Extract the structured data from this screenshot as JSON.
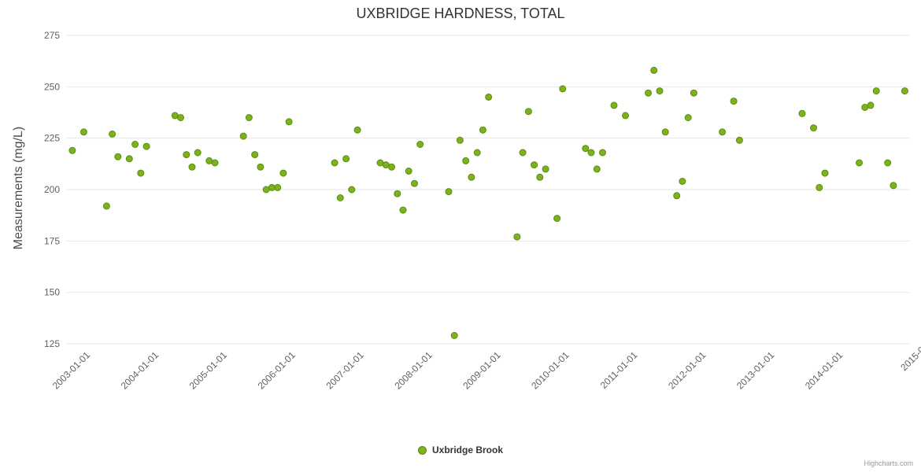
{
  "credits": "Highcharts.com",
  "chart_data": {
    "type": "scatter",
    "title": "UXBRIDGE HARDNESS, TOTAL",
    "xlabel": "",
    "ylabel": "Measurements (mg/L)",
    "ylim": [
      125,
      275
    ],
    "y_ticks": [
      125,
      150,
      175,
      200,
      225,
      250,
      275
    ],
    "x_ticks": [
      "2003-01-01",
      "2004-01-01",
      "2005-01-01",
      "2006-01-01",
      "2007-01-01",
      "2008-01-01",
      "2009-01-01",
      "2010-01-01",
      "2011-01-01",
      "2012-01-01",
      "2013-01-01",
      "2014-01-01",
      "2015-01-01"
    ],
    "grid": "horizontal",
    "legend_position": "bottom-center",
    "colors": {
      "grid": "#e6e6e6",
      "axis_label": "#606060",
      "title": "#333333"
    },
    "series": [
      {
        "name": "Uxbridge Brook",
        "color": "#7bb21e",
        "stroke": "#5d8c10",
        "points": [
          {
            "d": "2002-10",
            "v": 219
          },
          {
            "d": "2002-12",
            "v": 228
          },
          {
            "d": "2003-04",
            "v": 192
          },
          {
            "d": "2003-05",
            "v": 227
          },
          {
            "d": "2003-06",
            "v": 216
          },
          {
            "d": "2003-08",
            "v": 215
          },
          {
            "d": "2003-09",
            "v": 222
          },
          {
            "d": "2003-10",
            "v": 208
          },
          {
            "d": "2003-11",
            "v": 221
          },
          {
            "d": "2004-04",
            "v": 236
          },
          {
            "d": "2004-05",
            "v": 235
          },
          {
            "d": "2004-06",
            "v": 217
          },
          {
            "d": "2004-07",
            "v": 211
          },
          {
            "d": "2004-08",
            "v": 218
          },
          {
            "d": "2004-10",
            "v": 214
          },
          {
            "d": "2004-11",
            "v": 213
          },
          {
            "d": "2005-04",
            "v": 226
          },
          {
            "d": "2005-05",
            "v": 235
          },
          {
            "d": "2005-06",
            "v": 217
          },
          {
            "d": "2005-07",
            "v": 211
          },
          {
            "d": "2005-08",
            "v": 200
          },
          {
            "d": "2005-09",
            "v": 201
          },
          {
            "d": "2005-10",
            "v": 201
          },
          {
            "d": "2005-11",
            "v": 208
          },
          {
            "d": "2005-12",
            "v": 233
          },
          {
            "d": "2006-08",
            "v": 213
          },
          {
            "d": "2006-09",
            "v": 196
          },
          {
            "d": "2006-10",
            "v": 215
          },
          {
            "d": "2006-11",
            "v": 200
          },
          {
            "d": "2006-12",
            "v": 229
          },
          {
            "d": "2007-04",
            "v": 213
          },
          {
            "d": "2007-05",
            "v": 212
          },
          {
            "d": "2007-06",
            "v": 211
          },
          {
            "d": "2007-07",
            "v": 198
          },
          {
            "d": "2007-08",
            "v": 190
          },
          {
            "d": "2007-09",
            "v": 209
          },
          {
            "d": "2007-10",
            "v": 203
          },
          {
            "d": "2007-11",
            "v": 222
          },
          {
            "d": "2008-04",
            "v": 199
          },
          {
            "d": "2008-05",
            "v": 129
          },
          {
            "d": "2008-06",
            "v": 224
          },
          {
            "d": "2008-07",
            "v": 214
          },
          {
            "d": "2008-08",
            "v": 206
          },
          {
            "d": "2008-09",
            "v": 218
          },
          {
            "d": "2008-10",
            "v": 229
          },
          {
            "d": "2008-11",
            "v": 245
          },
          {
            "d": "2009-04",
            "v": 177
          },
          {
            "d": "2009-05",
            "v": 218
          },
          {
            "d": "2009-06",
            "v": 238
          },
          {
            "d": "2009-07",
            "v": 212
          },
          {
            "d": "2009-08",
            "v": 206
          },
          {
            "d": "2009-09",
            "v": 210
          },
          {
            "d": "2009-11",
            "v": 186
          },
          {
            "d": "2009-12",
            "v": 249
          },
          {
            "d": "2010-04",
            "v": 220
          },
          {
            "d": "2010-05",
            "v": 218
          },
          {
            "d": "2010-06",
            "v": 210
          },
          {
            "d": "2010-07",
            "v": 218
          },
          {
            "d": "2010-09",
            "v": 241
          },
          {
            "d": "2010-11",
            "v": 236
          },
          {
            "d": "2011-03",
            "v": 247
          },
          {
            "d": "2011-04",
            "v": 258
          },
          {
            "d": "2011-05",
            "v": 248
          },
          {
            "d": "2011-06",
            "v": 228
          },
          {
            "d": "2011-08",
            "v": 197
          },
          {
            "d": "2011-09",
            "v": 204
          },
          {
            "d": "2011-10",
            "v": 235
          },
          {
            "d": "2011-11",
            "v": 247
          },
          {
            "d": "2012-04",
            "v": 228
          },
          {
            "d": "2012-06",
            "v": 243
          },
          {
            "d": "2012-07",
            "v": 224
          },
          {
            "d": "2013-06",
            "v": 237
          },
          {
            "d": "2013-08",
            "v": 230
          },
          {
            "d": "2013-09",
            "v": 201
          },
          {
            "d": "2013-10",
            "v": 208
          },
          {
            "d": "2014-04",
            "v": 213
          },
          {
            "d": "2014-05",
            "v": 240
          },
          {
            "d": "2014-06",
            "v": 241
          },
          {
            "d": "2014-07",
            "v": 248
          },
          {
            "d": "2014-09",
            "v": 213
          },
          {
            "d": "2014-10",
            "v": 202
          },
          {
            "d": "2014-12",
            "v": 248
          }
        ]
      }
    ]
  }
}
